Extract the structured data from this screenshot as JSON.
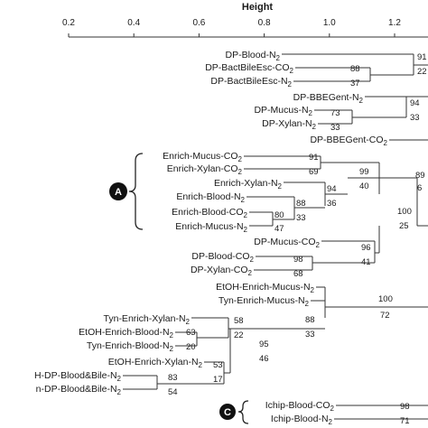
{
  "axis": {
    "title": "Height",
    "ticks": [
      {
        "value": 0.2,
        "label": "0.2"
      },
      {
        "value": 0.4,
        "label": "0.4"
      },
      {
        "value": 0.6,
        "label": "0.6"
      },
      {
        "value": 0.8,
        "label": "0.8"
      },
      {
        "value": 1.0,
        "label": "1.0"
      },
      {
        "value": 1.2,
        "label": "1.2"
      }
    ]
  },
  "leaves": [
    {
      "label": "DP-Blood-N",
      "sub": "2"
    },
    {
      "label": "DP-BactBileEsc-CO",
      "sub": "2"
    },
    {
      "label": "DP-BactBileEsc-N",
      "sub": "2"
    },
    {
      "label": "DP-BBEGent-N",
      "sub": "2"
    },
    {
      "label": "DP-Mucus-N",
      "sub": "2"
    },
    {
      "label": "DP-Xylan-N",
      "sub": "2"
    },
    {
      "label": "DP-BBEGent-CO",
      "sub": "2"
    },
    {
      "label": "Enrich-Mucus-CO",
      "sub": "2"
    },
    {
      "label": "Enrich-Xylan-CO",
      "sub": "2"
    },
    {
      "label": "Enrich-Xylan-N",
      "sub": "2"
    },
    {
      "label": "Enrich-Blood-N",
      "sub": "2"
    },
    {
      "label": "Enrich-Blood-CO",
      "sub": "2"
    },
    {
      "label": "Enrich-Mucus-N",
      "sub": "2"
    },
    {
      "label": "DP-Mucus-CO",
      "sub": "2"
    },
    {
      "label": "DP-Blood-CO",
      "sub": "2"
    },
    {
      "label": "DP-Xylan-CO",
      "sub": "2"
    },
    {
      "label": "EtOH-Enrich-Mucus-N",
      "sub": "2"
    },
    {
      "label": "Tyn-Enrich-Mucus-N",
      "sub": "2"
    },
    {
      "label": "Tyn-Enrich-Xylan-N",
      "sub": "2"
    },
    {
      "label": "EtOH-Enrich-Blood-N",
      "sub": "2"
    },
    {
      "label": "Tyn-Enrich-Blood-N",
      "sub": "2"
    },
    {
      "label": "EtOH-Enrich-Xylan-N",
      "sub": "2"
    },
    {
      "label": "H-DP-Blood&Bile-N",
      "sub": "2"
    },
    {
      "label": "n-DP-Blood&Bile-N",
      "sub": "2"
    },
    {
      "label": "Ichip-Blood-CO",
      "sub": "2"
    },
    {
      "label": "Ichip-Blood-N",
      "sub": "2"
    }
  ],
  "supports": [
    {
      "au": "91",
      "bp": "22"
    },
    {
      "au": "88",
      "bp": "37"
    },
    {
      "au": "94",
      "bp": "33"
    },
    {
      "au": "73",
      "bp": "33"
    },
    {
      "au": "91",
      "bp": "69"
    },
    {
      "au": "99",
      "bp": "40"
    },
    {
      "au": "94",
      "bp": "36"
    },
    {
      "au": "88",
      "bp": "33"
    },
    {
      "au": "80",
      "bp": "47"
    },
    {
      "au": "89",
      "bp": "6"
    },
    {
      "au": "100",
      "bp": "25"
    },
    {
      "au": "96",
      "bp": "41"
    },
    {
      "au": "98",
      "bp": "68"
    },
    {
      "au": "100",
      "bp": "72"
    },
    {
      "au": "88",
      "bp": "33"
    },
    {
      "au": "58",
      "bp": "22"
    },
    {
      "au": "63",
      "bp": "20"
    },
    {
      "au": "95",
      "bp": "46"
    },
    {
      "au": "53",
      "bp": "17"
    },
    {
      "au": "83",
      "bp": "54"
    },
    {
      "au": "98",
      "bp": "71"
    }
  ],
  "groups": [
    {
      "letter": "A"
    },
    {
      "letter": "C"
    }
  ]
}
